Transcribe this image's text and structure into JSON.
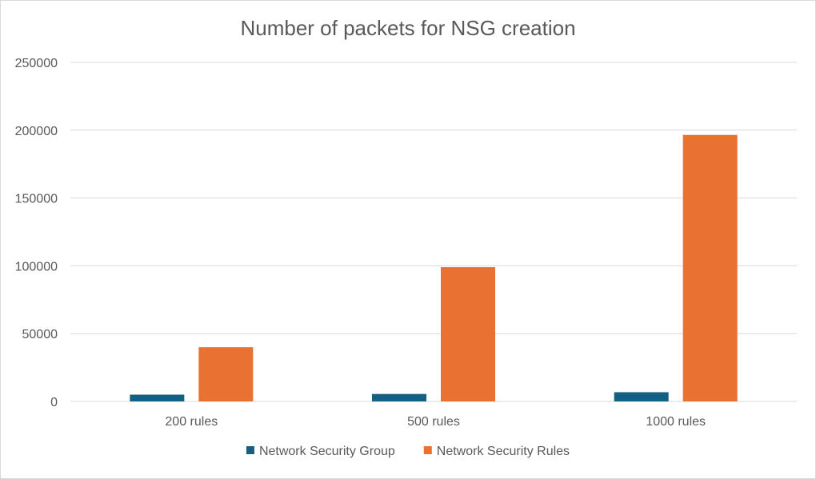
{
  "chart_data": {
    "type": "bar",
    "title": "Number of packets for NSG creation",
    "categories": [
      "200 rules",
      "500 rules",
      "1000 rules"
    ],
    "series": [
      {
        "name": "Network Security Group",
        "color": "#156082",
        "values": [
          5000,
          5500,
          6800
        ]
      },
      {
        "name": "Network Security Rules",
        "color": "#E97132",
        "values": [
          40000,
          99000,
          196500
        ]
      }
    ],
    "yticks": [
      "0",
      "50000",
      "100000",
      "150000",
      "200000",
      "250000"
    ],
    "ylim": [
      0,
      250000
    ],
    "xlabel": "",
    "ylabel": "",
    "grid": true,
    "legend": "bottom"
  }
}
